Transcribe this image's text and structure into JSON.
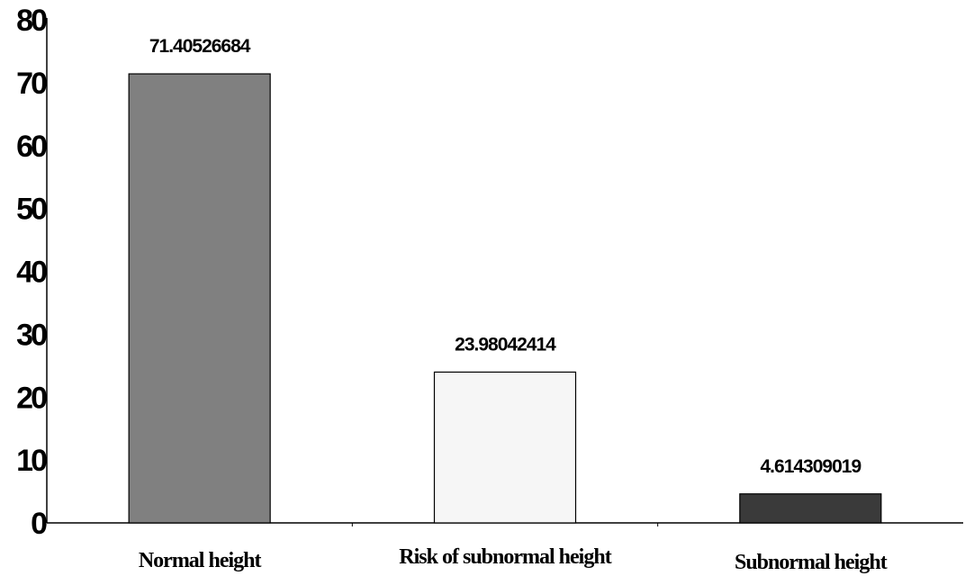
{
  "chart_data": {
    "type": "bar",
    "categories": [
      "Normal height",
      "Risk of subnormal height",
      "Subnormal height"
    ],
    "values": [
      71.40526684,
      23.98042414,
      4.614309019
    ],
    "data_labels": [
      "71.40526684",
      "23.98042414",
      "4.614309019"
    ],
    "title": "",
    "xlabel": "",
    "ylabel": "",
    "ylim": [
      0,
      80
    ],
    "yticks": [
      0,
      10,
      20,
      30,
      40,
      50,
      60,
      70,
      80
    ],
    "ytick_labels": [
      "0",
      "10",
      "20",
      "30",
      "40",
      "50",
      "60",
      "70",
      "80"
    ],
    "grid": false,
    "legend": "none",
    "colors": [
      "#808080",
      "#f6f6f6",
      "#3a3a3a"
    ]
  }
}
